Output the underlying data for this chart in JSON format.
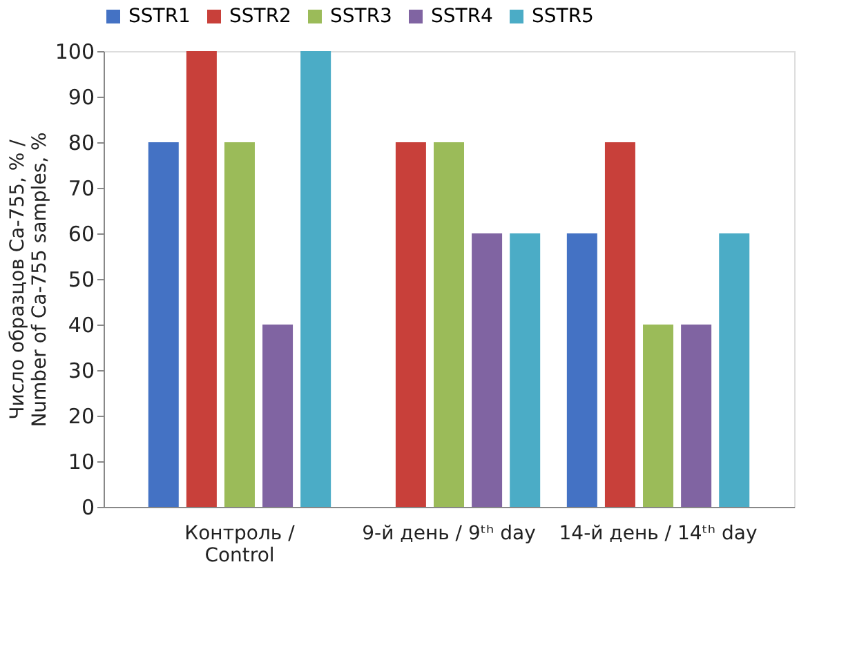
{
  "chart_data": {
    "type": "bar",
    "ylabel": "Число образцов Ca-755, % /\nNumber of Ca-755 samples, %",
    "categories": [
      "Контроль /\nControl",
      "9-й день / 9ᵗʰ day",
      "14-й день / 14ᵗʰ day"
    ],
    "series": [
      {
        "name": "SSTR1",
        "color": "#4472c4",
        "values": [
          80,
          0,
          60
        ]
      },
      {
        "name": "SSTR2",
        "color": "#c8403a",
        "values": [
          100,
          80,
          80
        ]
      },
      {
        "name": "SSTR3",
        "color": "#9bbb59",
        "values": [
          80,
          80,
          40
        ]
      },
      {
        "name": "SSTR4",
        "color": "#8064a2",
        "values": [
          40,
          60,
          40
        ]
      },
      {
        "name": "SSTR5",
        "color": "#4bacc6",
        "values": [
          100,
          60,
          60
        ]
      }
    ],
    "ylim": [
      0,
      100
    ],
    "yticks": [
      0,
      10,
      20,
      30,
      40,
      50,
      60,
      70,
      80,
      90,
      100
    ],
    "grid": false,
    "legend": "top"
  }
}
